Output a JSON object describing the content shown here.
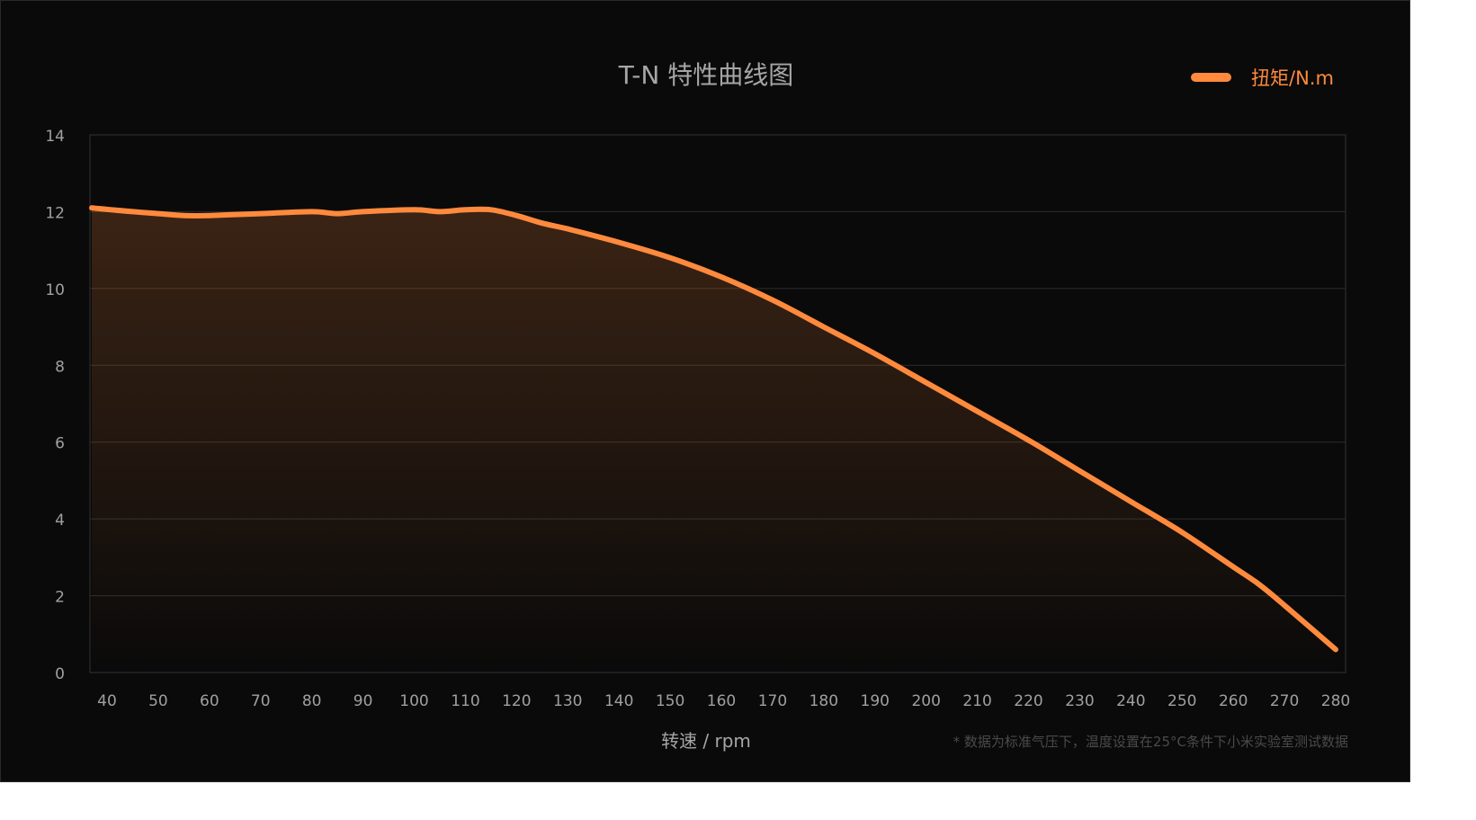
{
  "chart_data": {
    "type": "area",
    "title": "T-N 特性曲线图",
    "xlabel": "转速 / rpm",
    "ylabel": "",
    "footnote": "* 数据为标准气压下，温度设置在25°C条件下小米实验室测试数据",
    "x_ticks": [
      40,
      50,
      60,
      70,
      80,
      90,
      100,
      110,
      120,
      130,
      140,
      150,
      160,
      170,
      180,
      190,
      200,
      210,
      220,
      230,
      240,
      250,
      260,
      270,
      280
    ],
    "y_ticks": [
      0,
      2,
      4,
      6,
      8,
      10,
      12,
      14
    ],
    "ylim": [
      0,
      14
    ],
    "grid": true,
    "legend_position": "top-right",
    "series": [
      {
        "name": "扭矩/N.m",
        "color": "#ff8a3d",
        "points": [
          [
            40,
            12.1
          ],
          [
            45,
            12.0
          ],
          [
            50,
            11.95
          ],
          [
            55,
            11.9
          ],
          [
            60,
            11.9
          ],
          [
            70,
            11.95
          ],
          [
            80,
            12.0
          ],
          [
            85,
            11.95
          ],
          [
            90,
            12.0
          ],
          [
            100,
            12.05
          ],
          [
            105,
            12.0
          ],
          [
            110,
            12.05
          ],
          [
            115,
            12.05
          ],
          [
            120,
            11.9
          ],
          [
            125,
            11.7
          ],
          [
            130,
            11.55
          ],
          [
            140,
            11.2
          ],
          [
            150,
            10.8
          ],
          [
            160,
            10.3
          ],
          [
            170,
            9.7
          ],
          [
            180,
            9.0
          ],
          [
            190,
            8.3
          ],
          [
            200,
            7.55
          ],
          [
            210,
            6.8
          ],
          [
            220,
            6.05
          ],
          [
            230,
            5.25
          ],
          [
            240,
            4.45
          ],
          [
            250,
            3.65
          ],
          [
            260,
            2.75
          ],
          [
            265,
            2.3
          ],
          [
            270,
            1.75
          ],
          [
            280,
            0.6
          ]
        ]
      }
    ]
  }
}
